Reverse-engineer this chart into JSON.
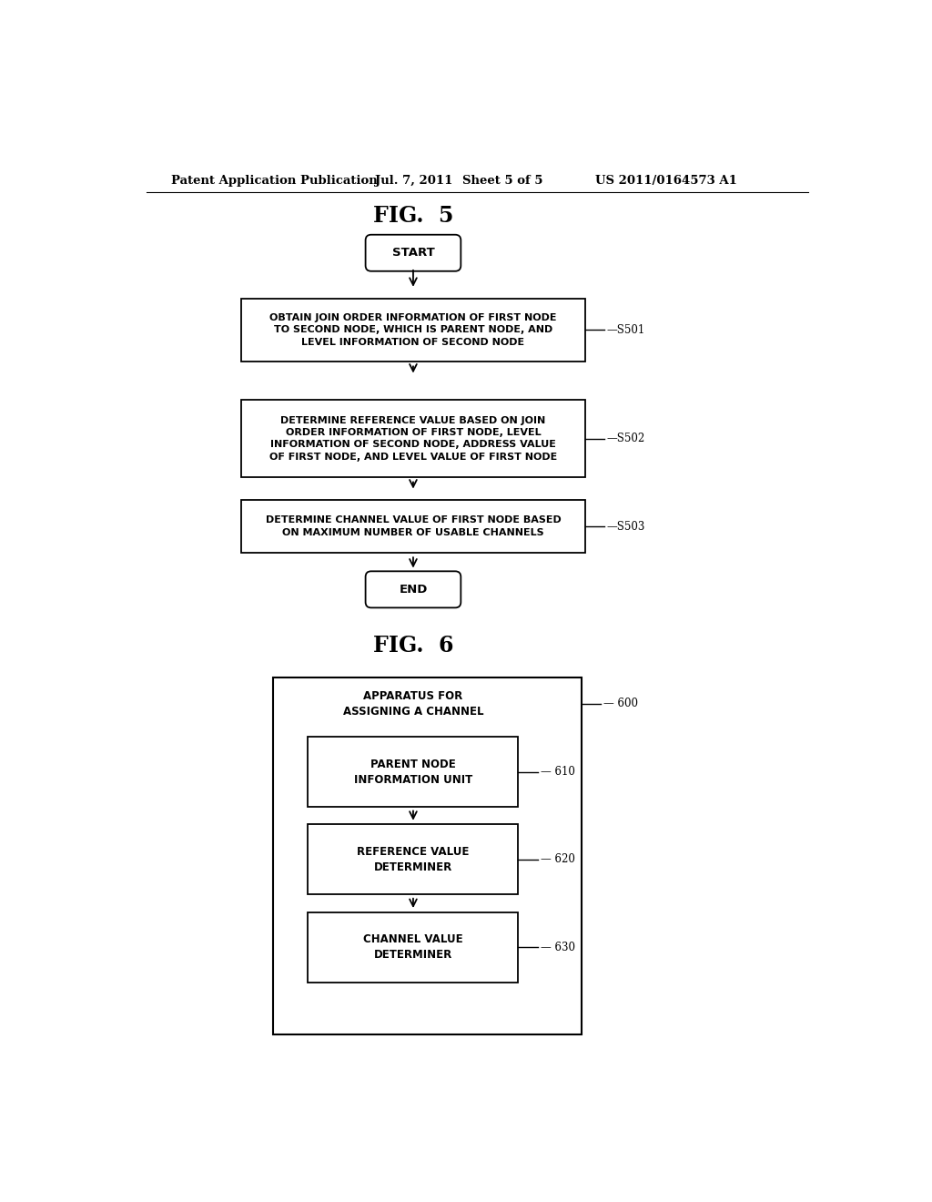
{
  "background_color": "#ffffff",
  "header_text": "Patent Application Publication",
  "header_date": "Jul. 7, 2011",
  "header_sheet": "Sheet 5 of 5",
  "header_patent": "US 2011/0164573 A1",
  "fig5_title": "FIG.  5",
  "fig6_title": "FIG.  6",
  "font_size_header": 9.5,
  "font_size_fig_title": 17,
  "font_size_box": 7.8,
  "font_size_label_id": 8.5
}
